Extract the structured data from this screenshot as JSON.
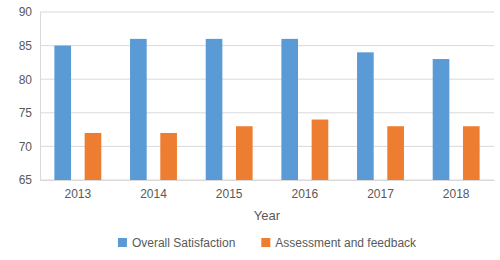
{
  "chart_data": {
    "type": "bar",
    "x_label": "Year",
    "categories": [
      "2013",
      "2014",
      "2015",
      "2016",
      "2017",
      "2018"
    ],
    "series": [
      {
        "name": "Overall Satisfaction",
        "color": "#5b9bd5",
        "values": [
          85,
          86,
          86,
          86,
          84,
          83
        ]
      },
      {
        "name": "Assessment and feedback",
        "color": "#ed7d31",
        "values": [
          72,
          72,
          73,
          74,
          73,
          73
        ]
      }
    ],
    "ylim": [
      65,
      90
    ],
    "yticks": [
      65,
      70,
      75,
      80,
      85,
      90
    ],
    "grid": true,
    "legend": "bottom"
  }
}
